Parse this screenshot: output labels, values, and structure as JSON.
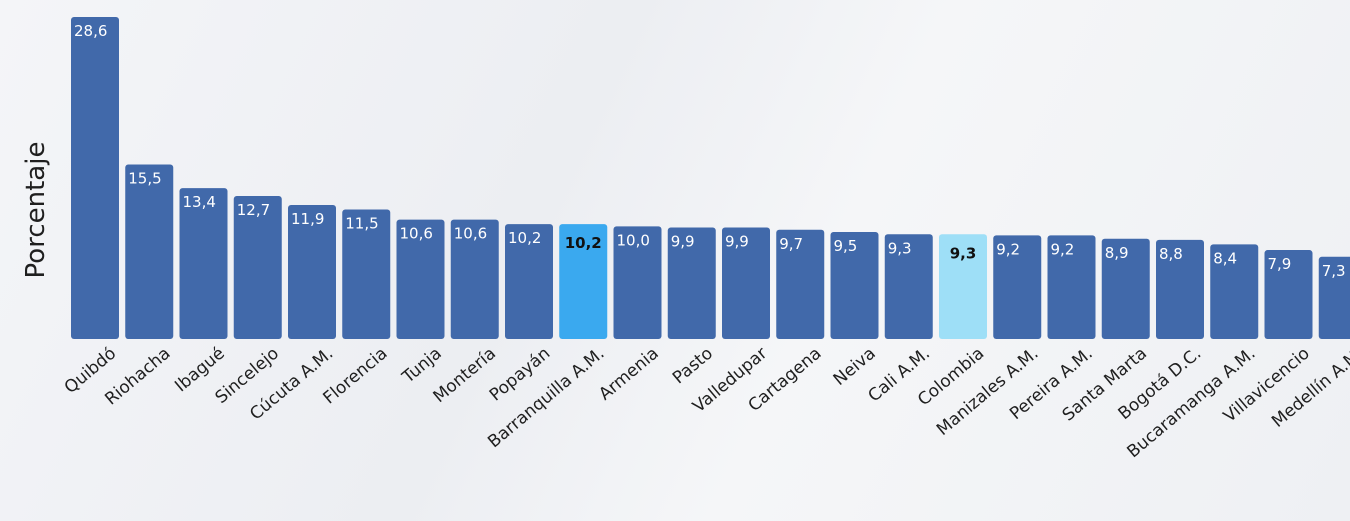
{
  "chart_data": {
    "type": "bar",
    "ylabel": "Porcentaje",
    "xlabel": "",
    "ylim": [
      0,
      28.6
    ],
    "grid": false,
    "legend": "none",
    "categories": [
      "Quibdó",
      "Riohacha",
      "Ibagué",
      "Sincelejo",
      "Cúcuta A.M.",
      "Florencia",
      "Tunja",
      "Montería",
      "Popayán",
      "Barranquilla A.M.",
      "Armenia",
      "Pasto",
      "Valledupar",
      "Cartagena",
      "Neiva",
      "Cali A.M.",
      "Colombia",
      "Manizales A.M.",
      "Pereira A.M.",
      "Santa Marta",
      "Bogotá D.C.",
      "Bucaramanga A.M.",
      "Villavicencio",
      "Medellín A.M."
    ],
    "values": [
      28.6,
      15.5,
      13.4,
      12.7,
      11.9,
      11.5,
      10.6,
      10.6,
      10.2,
      10.2,
      10.0,
      9.9,
      9.9,
      9.7,
      9.5,
      9.3,
      9.3,
      9.2,
      9.2,
      8.9,
      8.8,
      8.4,
      7.9,
      7.3
    ],
    "value_labels": [
      "28,6",
      "15,5",
      "13,4",
      "12,7",
      "11,9",
      "11,5",
      "10,6",
      "10,6",
      "10,2",
      "10,2",
      "10,0",
      "9,9",
      "9,9",
      "9,7",
      "9,5",
      "9,3",
      "9,3",
      "9,2",
      "9,2",
      "8,9",
      "8,8",
      "8,4",
      "7,9",
      "7,3"
    ],
    "highlights": {
      "Barranquilla A.M.": "#3aa9ef",
      "Colombia": "#9edff7"
    },
    "colors": {
      "bar": "#4169aa",
      "label_on_bar": "#ffffff",
      "label_on_highlight": "#111111"
    }
  }
}
